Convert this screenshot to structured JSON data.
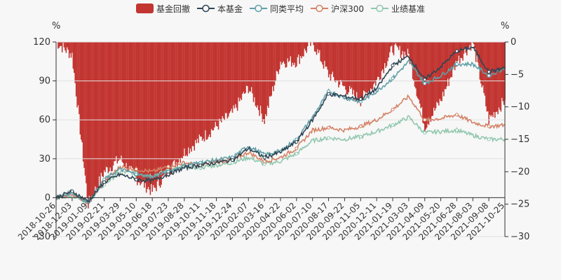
{
  "legend": [
    {
      "label": "基金回撤",
      "color": "#c23531",
      "kind": "bar"
    },
    {
      "label": "本基金",
      "color": "#2f4554",
      "kind": "line"
    },
    {
      "label": "同类平均",
      "color": "#61a0a8",
      "kind": "line"
    },
    {
      "label": "沪深300",
      "color": "#d48265",
      "kind": "line"
    },
    {
      "label": "业绩基准",
      "color": "#91c7ae",
      "kind": "line"
    }
  ],
  "chart_data": {
    "type": "line",
    "left_axis": {
      "unit": "%",
      "min": -30,
      "max": 120,
      "ticks": [
        "120",
        "90",
        "60",
        "30",
        "0",
        "−30"
      ]
    },
    "right_axis": {
      "unit": "%",
      "min": -30,
      "max": 0,
      "ticks": [
        "0",
        "−5",
        "−10",
        "−15",
        "−20",
        "−25",
        "−30"
      ]
    },
    "x_labels": [
      "2018-10-26",
      "2018-12-03",
      "2019-01-09",
      "2019-02-21",
      "2019-03-29",
      "2019-05-10",
      "2019-06-18",
      "2019-07-23",
      "2019-08-28",
      "2019-10-11",
      "2019-11-18",
      "2019-12-24",
      "2020-02-07",
      "2020-03-16",
      "2020-04-22",
      "2020-06-02",
      "2020-07-10",
      "2020-08-17",
      "2020-09-22",
      "2020-11-05",
      "2020-12-11",
      "2021-01-19",
      "2021-03-03",
      "2021-04-09",
      "2021-05-20",
      "2021-06-28",
      "2021-08-03",
      "2021-09-08",
      "2021-10-25"
    ],
    "series": [
      {
        "name": "本基金",
        "color": "#2f4554",
        "axis": "left",
        "values": [
          0,
          5,
          -3,
          12,
          18,
          14,
          13,
          18,
          23,
          25,
          27,
          29,
          38,
          31,
          35,
          43,
          60,
          80,
          78,
          76,
          84,
          102,
          109,
          91,
          101,
          113,
          116,
          97,
          100
        ]
      },
      {
        "name": "同类平均",
        "color": "#61a0a8",
        "axis": "left",
        "values": [
          0,
          4,
          -4,
          14,
          22,
          18,
          16,
          20,
          25,
          27,
          29,
          31,
          40,
          33,
          36,
          45,
          62,
          82,
          77,
          74,
          82,
          92,
          105,
          88,
          94,
          103,
          103,
          94,
          100
        ]
      },
      {
        "name": "沪深300",
        "color": "#d48265",
        "axis": "left",
        "values": [
          0,
          3,
          -4,
          12,
          24,
          22,
          20,
          24,
          27,
          25,
          28,
          29,
          35,
          28,
          31,
          38,
          52,
          54,
          52,
          55,
          60,
          68,
          78,
          60,
          61,
          64,
          58,
          55,
          56
        ]
      },
      {
        "name": "业绩基准",
        "color": "#91c7ae",
        "axis": "left",
        "values": [
          0,
          2,
          -3,
          10,
          20,
          19,
          17,
          21,
          24,
          23,
          25,
          27,
          31,
          26,
          28,
          34,
          44,
          46,
          45,
          47,
          51,
          56,
          62,
          50,
          51,
          52,
          48,
          45,
          45
        ]
      },
      {
        "name": "基金回撤",
        "color": "#c23531",
        "axis": "right",
        "kind": "bar",
        "values": [
          0,
          -2,
          -25,
          -20,
          -18,
          -21,
          -23,
          -20,
          -17,
          -15,
          -13,
          -11,
          -7,
          -12,
          -3,
          -3,
          0,
          -5,
          -7,
          -9,
          -6,
          -1,
          -2,
          -13,
          -9,
          -3,
          0,
          -12,
          -9
        ]
      }
    ]
  }
}
